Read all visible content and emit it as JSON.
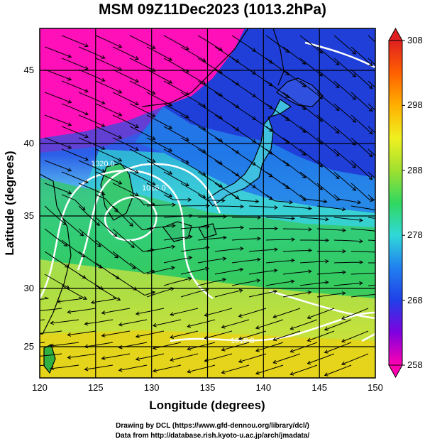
{
  "title": "MSM 09Z11Dec2023 (1013.2hPa)",
  "x_axis": {
    "label": "Longitude (degrees)",
    "range": [
      120,
      150
    ],
    "ticks": [
      "120",
      "125",
      "130",
      "135",
      "140",
      "145",
      "150"
    ]
  },
  "y_axis": {
    "label": "Latitude  (degrees)",
    "range": [
      22.6,
      47.8
    ],
    "ticks": [
      "25",
      "30",
      "35",
      "40",
      "45"
    ]
  },
  "colorbar": {
    "range": [
      258,
      308
    ],
    "ticks": [
      "258",
      "268",
      "278",
      "288",
      "298",
      "308"
    ]
  },
  "contour_labels": [
    "1020.0",
    "1016.0",
    "1012.0"
  ],
  "credits": [
    "Drawing by DCL (https://www.gfd-dennou.org/library/dcl/)",
    "Data from http://database.rish.kyoto-u.ac.jp/arch/jmadata/"
  ]
}
